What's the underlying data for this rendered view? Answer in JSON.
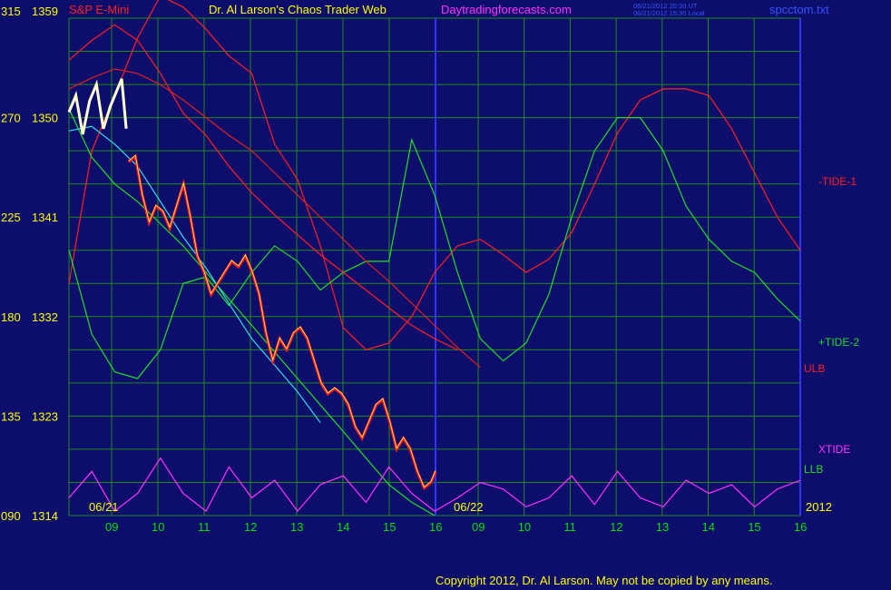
{
  "header": {
    "symbol": "S&P E-Mini",
    "title": "Dr. Al Larson's Chaos Trader Web",
    "website": "Daytradingforecasts.com",
    "timestamp_ut": "06/21/2012 20:30 UT",
    "timestamp_local": "06/21/2012 15:30 Local",
    "filename": "spcctom.txt"
  },
  "footer": {
    "copyright": "Copyright 2012, Dr. Al Larson. May not be copied by any means."
  },
  "colors": {
    "background": "#0d0d6b",
    "grid": "#1f8a1f",
    "price_axis_label": "#ffff00",
    "symbol": "#ff2020",
    "title": "#ffff00",
    "website": "#ff33ff",
    "filename": "#3355ff",
    "time_axis": "#00e000",
    "date_label": "#ffff00",
    "divider": "#3333ff",
    "copyright": "#ffff00"
  },
  "chart_data": {
    "type": "line",
    "x_axis": {
      "day1_label": "06/21",
      "day2_label": "06/22",
      "year_label": "2012",
      "hour_ticks": [
        "09",
        "10",
        "11",
        "12",
        "13",
        "14",
        "15",
        "16",
        "09",
        "10",
        "11",
        "12",
        "13",
        "14",
        "15",
        "16"
      ]
    },
    "y_axis": {
      "rows": [
        {
          "osc": "315",
          "price": "1359"
        },
        {
          "osc": "270",
          "price": "1350"
        },
        {
          "osc": "225",
          "price": "1341"
        },
        {
          "osc": "180",
          "price": "1332"
        },
        {
          "osc": "135",
          "price": "1323"
        },
        {
          "osc": "090",
          "price": "1314"
        }
      ],
      "price_range": [
        1314,
        1359
      ],
      "osc_range": [
        90,
        315
      ]
    },
    "series": [
      {
        "name": "-TIDE-1",
        "color": "#ff2020",
        "label_color": "#ff2020",
        "points": [
          [
            8,
            195
          ],
          [
            9,
            255
          ],
          [
            10,
            280
          ],
          [
            11,
            306
          ],
          [
            12,
            325
          ],
          [
            13,
            320
          ],
          [
            14,
            310
          ],
          [
            15,
            298
          ],
          [
            16,
            290
          ],
          [
            17,
            258
          ],
          [
            18,
            242
          ],
          [
            19,
            212
          ],
          [
            20,
            175
          ],
          [
            21,
            165
          ],
          [
            22,
            168
          ],
          [
            23,
            180
          ],
          [
            24,
            200
          ],
          [
            25,
            212
          ],
          [
            26,
            215
          ],
          [
            27,
            208
          ],
          [
            28,
            200
          ],
          [
            29,
            206
          ],
          [
            30,
            218
          ],
          [
            31,
            240
          ],
          [
            32,
            263
          ],
          [
            33,
            278
          ],
          [
            34,
            283
          ],
          [
            35,
            283
          ],
          [
            36,
            280
          ],
          [
            37,
            265
          ],
          [
            38,
            245
          ],
          [
            39,
            225
          ],
          [
            40,
            210
          ]
        ]
      },
      {
        "name": "+TIDE-2",
        "color": "#22dd22",
        "label_color": "#22dd22",
        "points": [
          [
            8,
            210
          ],
          [
            9,
            172
          ],
          [
            10,
            155
          ],
          [
            11,
            152
          ],
          [
            12,
            165
          ],
          [
            13,
            195
          ],
          [
            14,
            198
          ],
          [
            15,
            185
          ],
          [
            16,
            200
          ],
          [
            17,
            212
          ],
          [
            18,
            205
          ],
          [
            19,
            192
          ],
          [
            20,
            200
          ],
          [
            21,
            205
          ],
          [
            22,
            205
          ],
          [
            23,
            260
          ],
          [
            24,
            235
          ],
          [
            25,
            200
          ],
          [
            26,
            170
          ],
          [
            27,
            160
          ],
          [
            28,
            168
          ],
          [
            29,
            190
          ],
          [
            30,
            225
          ],
          [
            31,
            255
          ],
          [
            32,
            270
          ],
          [
            33,
            270
          ],
          [
            34,
            255
          ],
          [
            35,
            230
          ],
          [
            36,
            215
          ],
          [
            37,
            205
          ],
          [
            38,
            200
          ],
          [
            39,
            188
          ],
          [
            40,
            178
          ]
        ]
      },
      {
        "name": "ULB",
        "color": "#dd2020",
        "label_color": "#ff2020",
        "points": [
          [
            8,
            283
          ],
          [
            9,
            288
          ],
          [
            10,
            292
          ],
          [
            11,
            290
          ],
          [
            12,
            285
          ],
          [
            13,
            278
          ],
          [
            14,
            270
          ],
          [
            15,
            262
          ],
          [
            16,
            255
          ],
          [
            17,
            245
          ],
          [
            18,
            235
          ],
          [
            19,
            225
          ],
          [
            20,
            215
          ],
          [
            21,
            205
          ],
          [
            22,
            196
          ],
          [
            23,
            186
          ],
          [
            24,
            176
          ],
          [
            25,
            166
          ],
          [
            26,
            157
          ]
        ]
      },
      {
        "name": "LLB",
        "color": "#22dd22",
        "label_color": "#22dd22",
        "points": [
          [
            8,
            274
          ],
          [
            9,
            252
          ],
          [
            10,
            240
          ],
          [
            11,
            232
          ],
          [
            12,
            222
          ],
          [
            13,
            212
          ],
          [
            14,
            200
          ],
          [
            15,
            188
          ],
          [
            16,
            176
          ],
          [
            17,
            164
          ],
          [
            18,
            152
          ],
          [
            19,
            140
          ],
          [
            20,
            128
          ],
          [
            21,
            116
          ],
          [
            22,
            104
          ],
          [
            23,
            96
          ],
          [
            24,
            90
          ]
        ]
      },
      {
        "name": "XTIDE",
        "color": "#ff33ff",
        "label_color": "#ff33ff",
        "points": [
          [
            8,
            98
          ],
          [
            9,
            110
          ],
          [
            10,
            92
          ],
          [
            11,
            100
          ],
          [
            12,
            116
          ],
          [
            13,
            100
          ],
          [
            14,
            92
          ],
          [
            15,
            112
          ],
          [
            16,
            98
          ],
          [
            17,
            106
          ],
          [
            18,
            92
          ],
          [
            19,
            104
          ],
          [
            20,
            108
          ],
          [
            21,
            96
          ],
          [
            22,
            112
          ],
          [
            23,
            100
          ],
          [
            24,
            92
          ],
          [
            25,
            98
          ],
          [
            26,
            105
          ],
          [
            27,
            102
          ],
          [
            28,
            94
          ],
          [
            29,
            98
          ],
          [
            30,
            108
          ],
          [
            31,
            95
          ],
          [
            32,
            110
          ],
          [
            33,
            98
          ],
          [
            34,
            94
          ],
          [
            35,
            106
          ],
          [
            36,
            100
          ],
          [
            37,
            104
          ],
          [
            38,
            94
          ],
          [
            39,
            102
          ],
          [
            40,
            106
          ]
        ]
      }
    ],
    "extra_lines": [
      {
        "color": "#33ddee",
        "points": [
          [
            8,
            264
          ],
          [
            9,
            266
          ],
          [
            10,
            258
          ],
          [
            11,
            248
          ],
          [
            12,
            232
          ],
          [
            13,
            216
          ],
          [
            14,
            202
          ],
          [
            15,
            186
          ],
          [
            16,
            170
          ],
          [
            17,
            158
          ],
          [
            18,
            146
          ],
          [
            19,
            132
          ]
        ]
      },
      {
        "color": "#ff2020",
        "points": [
          [
            8,
            296
          ],
          [
            9,
            305
          ],
          [
            10,
            312
          ],
          [
            11,
            305
          ],
          [
            12,
            290
          ],
          [
            13,
            272
          ],
          [
            14,
            262
          ],
          [
            15,
            248
          ],
          [
            16,
            236
          ],
          [
            17,
            226
          ],
          [
            18,
            217
          ],
          [
            19,
            208
          ],
          [
            20,
            200
          ],
          [
            21,
            192
          ],
          [
            22,
            184
          ],
          [
            23,
            176
          ],
          [
            24,
            170
          ],
          [
            25,
            165
          ]
        ]
      }
    ],
    "price": {
      "white_section": [
        [
          0.0,
          1350.5
        ],
        [
          0.15,
          1352
        ],
        [
          0.3,
          1348.5
        ],
        [
          0.45,
          1351.5
        ],
        [
          0.6,
          1353
        ],
        [
          0.75,
          1349
        ],
        [
          0.9,
          1351
        ],
        [
          1.05,
          1352.5
        ],
        [
          1.15,
          1353.5
        ],
        [
          1.25,
          1349
        ]
      ],
      "red_section": [
        [
          1.3,
          1346
        ],
        [
          1.45,
          1346.5
        ],
        [
          1.6,
          1343
        ],
        [
          1.75,
          1340.5
        ],
        [
          1.9,
          1342
        ],
        [
          2.05,
          1341.5
        ],
        [
          2.2,
          1340
        ],
        [
          2.35,
          1342
        ],
        [
          2.5,
          1344
        ],
        [
          2.65,
          1341
        ],
        [
          2.8,
          1337.5
        ],
        [
          2.95,
          1336
        ],
        [
          3.1,
          1334
        ],
        [
          3.25,
          1335
        ],
        [
          3.4,
          1336
        ],
        [
          3.55,
          1337
        ],
        [
          3.7,
          1336.5
        ],
        [
          3.85,
          1337.5
        ],
        [
          4.0,
          1336
        ],
        [
          4.15,
          1334
        ],
        [
          4.3,
          1330.5
        ],
        [
          4.45,
          1328
        ],
        [
          4.6,
          1330
        ],
        [
          4.75,
          1329
        ],
        [
          4.9,
          1330.5
        ],
        [
          5.05,
          1331
        ],
        [
          5.2,
          1330
        ],
        [
          5.35,
          1328
        ],
        [
          5.5,
          1326
        ],
        [
          5.65,
          1325
        ],
        [
          5.8,
          1325.5
        ],
        [
          5.95,
          1325
        ],
        [
          6.1,
          1324
        ],
        [
          6.25,
          1322
        ],
        [
          6.4,
          1321
        ],
        [
          6.55,
          1322.5
        ],
        [
          6.7,
          1324
        ],
        [
          6.85,
          1324.5
        ],
        [
          7.0,
          1322.5
        ],
        [
          7.15,
          1320
        ],
        [
          7.3,
          1321
        ],
        [
          7.45,
          1320
        ],
        [
          7.6,
          1318
        ],
        [
          7.75,
          1316.5
        ],
        [
          7.9,
          1317
        ],
        [
          8.0,
          1318
        ]
      ]
    }
  }
}
